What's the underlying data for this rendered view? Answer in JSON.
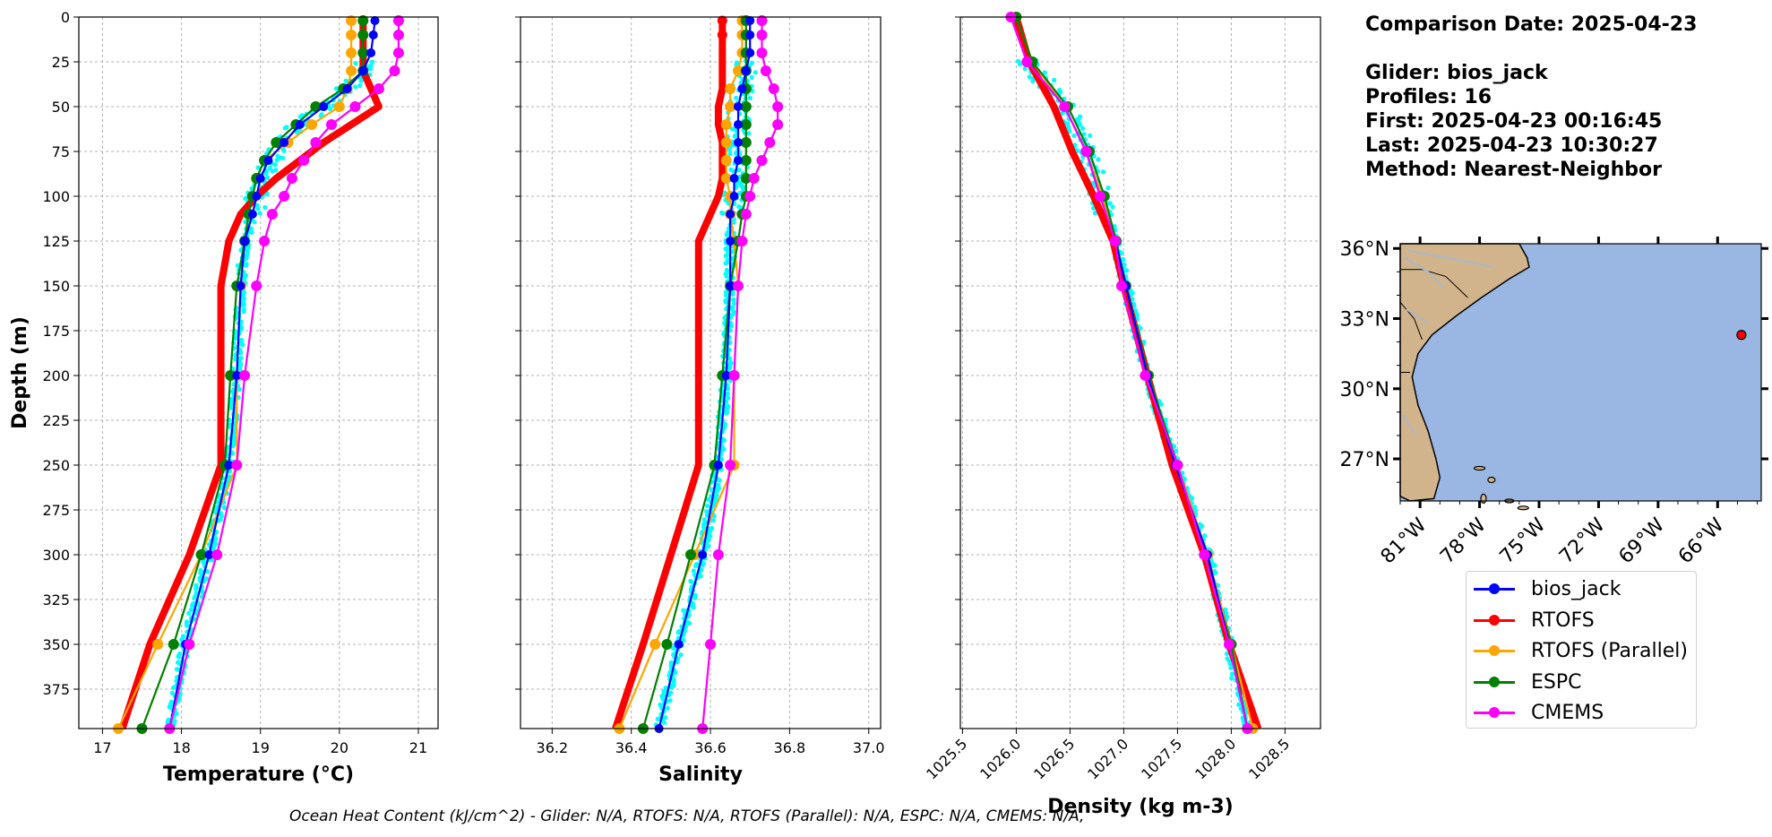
{
  "info": {
    "comparison_date": "Comparison Date: 2025-04-23",
    "glider": "Glider: bios_jack",
    "profiles": "Profiles: 16",
    "first": "First: 2025-04-23 00:16:45",
    "last": "Last: 2025-04-23 10:30:27",
    "method": "Method: Nearest-Neighbor"
  },
  "footer": "Ocean Heat Content (kJ/cm^2) - Glider: N/A,  RTOFS: N/A,  RTOFS (Parallel): N/A,  ESPC: N/A,  CMEMS: N/A,",
  "colors": {
    "bios_jack": "#0000ff",
    "RTOFS": "#ff0000",
    "RTOFS (Parallel)": "#ffa500",
    "ESPC": "#008000",
    "CMEMS": "#ff00ff",
    "glider_profiles": "#00ffff",
    "land": "#d2b48c",
    "ocean": "#9ab7e3",
    "grid": "#b0b0b0"
  },
  "legend": [
    "bios_jack",
    "RTOFS",
    "RTOFS (Parallel)",
    "ESPC",
    "CMEMS"
  ],
  "chart_data": [
    {
      "type": "line",
      "panel": "temperature",
      "xlabel": "Temperature (°C)",
      "ylabel": "Depth (m)",
      "xlim": [
        16.7,
        21.25
      ],
      "ylim": [
        397,
        0
      ],
      "xticks": [
        17,
        18,
        19,
        20,
        21
      ],
      "yticks": [
        0,
        25,
        50,
        75,
        100,
        125,
        150,
        175,
        200,
        225,
        250,
        275,
        300,
        325,
        350,
        375
      ],
      "depth": [
        2,
        10,
        20,
        30,
        40,
        50,
        60,
        70,
        80,
        90,
        100,
        110,
        125,
        150,
        200,
        250,
        300,
        350,
        397
      ],
      "series": [
        {
          "name": "bios_jack",
          "values": [
            20.45,
            20.43,
            20.4,
            20.3,
            20.1,
            19.8,
            19.5,
            19.3,
            19.1,
            19.0,
            18.95,
            18.9,
            18.8,
            18.75,
            18.7,
            18.6,
            18.35,
            18.05,
            17.85
          ]
        },
        {
          "name": "RTOFS",
          "values": [
            20.3,
            20.3,
            20.3,
            20.3,
            20.4,
            20.5,
            20.15,
            19.8,
            19.5,
            19.2,
            18.95,
            18.75,
            18.6,
            18.5,
            18.5,
            18.5,
            18.1,
            17.6,
            17.25
          ]
        },
        {
          "name": "RTOFS (Parallel)",
          "values": [
            20.15,
            20.15,
            20.15,
            20.15,
            20.1,
            20.0,
            19.65,
            19.35,
            19.05,
            18.95,
            18.9,
            18.85,
            18.8,
            18.75,
            18.7,
            18.7,
            18.25,
            17.7,
            17.2
          ]
        },
        {
          "name": "ESPC",
          "values": [
            20.3,
            20.3,
            20.3,
            20.3,
            20.05,
            19.7,
            19.45,
            19.2,
            19.05,
            18.95,
            18.9,
            18.85,
            18.8,
            18.7,
            18.62,
            18.55,
            18.25,
            17.9,
            17.5
          ]
        },
        {
          "name": "CMEMS",
          "values": [
            20.75,
            20.75,
            20.75,
            20.7,
            20.5,
            20.2,
            19.9,
            19.7,
            19.55,
            19.4,
            19.3,
            19.15,
            19.05,
            18.95,
            18.8,
            18.7,
            18.45,
            18.1,
            17.85
          ]
        }
      ]
    },
    {
      "type": "line",
      "panel": "salinity",
      "xlabel": "Salinity",
      "xlim": [
        36.12,
        37.03
      ],
      "xticks": [
        36.2,
        36.4,
        36.6,
        36.8,
        37.0
      ],
      "yticks": [
        0,
        25,
        50,
        75,
        100,
        125,
        150,
        175,
        200,
        225,
        250,
        275,
        300,
        325,
        350,
        375
      ],
      "depth": [
        2,
        10,
        20,
        30,
        40,
        50,
        60,
        70,
        80,
        90,
        100,
        110,
        125,
        150,
        200,
        250,
        300,
        350,
        397
      ],
      "series": [
        {
          "name": "bios_jack",
          "values": [
            36.7,
            36.7,
            36.7,
            36.69,
            36.68,
            36.67,
            36.67,
            36.67,
            36.67,
            36.66,
            36.66,
            36.65,
            36.65,
            36.65,
            36.64,
            36.62,
            36.58,
            36.52,
            36.47
          ]
        },
        {
          "name": "RTOFS",
          "values": [
            36.63,
            36.63,
            36.63,
            36.63,
            36.63,
            36.62,
            36.62,
            36.63,
            36.63,
            36.63,
            36.62,
            36.6,
            36.57,
            36.57,
            36.57,
            36.57,
            36.5,
            36.43,
            36.36
          ]
        },
        {
          "name": "RTOFS (Parallel)",
          "values": [
            36.68,
            36.68,
            36.68,
            36.67,
            36.65,
            36.65,
            36.64,
            36.64,
            36.64,
            36.64,
            36.65,
            36.65,
            36.66,
            36.67,
            36.66,
            36.66,
            36.56,
            36.46,
            36.37
          ]
        },
        {
          "name": "ESPC",
          "values": [
            36.69,
            36.69,
            36.69,
            36.69,
            36.69,
            36.69,
            36.69,
            36.69,
            36.69,
            36.69,
            36.69,
            36.68,
            36.67,
            36.65,
            36.63,
            36.61,
            36.55,
            36.49,
            36.43
          ]
        },
        {
          "name": "CMEMS",
          "values": [
            36.73,
            36.73,
            36.73,
            36.74,
            36.76,
            36.77,
            36.77,
            36.75,
            36.73,
            36.71,
            36.7,
            36.69,
            36.68,
            36.67,
            36.66,
            36.65,
            36.62,
            36.6,
            36.58
          ]
        }
      ]
    },
    {
      "type": "line",
      "panel": "density",
      "xlabel": "Density (kg m-3)",
      "xlim": [
        1025.48,
        1028.83
      ],
      "xticks": [
        1025.5,
        1026.0,
        1026.5,
        1027.0,
        1027.5,
        1028.0,
        1028.5
      ],
      "yticks": [
        0,
        25,
        50,
        75,
        100,
        125,
        150,
        175,
        200,
        225,
        250,
        275,
        300,
        325,
        350,
        375
      ],
      "depth": [
        0,
        25,
        50,
        75,
        100,
        125,
        150,
        200,
        250,
        300,
        350,
        397
      ],
      "series": [
        {
          "name": "bios_jack",
          "values": [
            1025.95,
            1026.1,
            1026.45,
            1026.65,
            1026.78,
            1026.92,
            1027.02,
            1027.22,
            1027.48,
            1027.78,
            1027.98,
            1028.15
          ]
        },
        {
          "name": "RTOFS",
          "values": [
            1026.0,
            1026.12,
            1026.35,
            1026.52,
            1026.72,
            1026.9,
            1027.0,
            1027.22,
            1027.45,
            1027.75,
            1027.98,
            1028.25
          ]
        },
        {
          "name": "RTOFS (Parallel)",
          "values": [
            1026.0,
            1026.15,
            1026.45,
            1026.65,
            1026.8,
            1026.92,
            1027.02,
            1027.23,
            1027.5,
            1027.78,
            1028.0,
            1028.2
          ]
        },
        {
          "name": "ESPC",
          "values": [
            1026.0,
            1026.15,
            1026.48,
            1026.68,
            1026.82,
            1026.93,
            1027.02,
            1027.23,
            1027.5,
            1027.75,
            1028.0,
            1028.15
          ]
        },
        {
          "name": "CMEMS",
          "values": [
            1025.95,
            1026.1,
            1026.45,
            1026.65,
            1026.78,
            1026.92,
            1026.98,
            1027.2,
            1027.5,
            1027.75,
            1027.98,
            1028.15
          ]
        }
      ]
    }
  ],
  "map": {
    "lat_ticks": [
      "36°N",
      "33°N",
      "30°N",
      "27°N"
    ],
    "lon_ticks": [
      "81°W",
      "78°W",
      "75°W",
      "72°W",
      "69°W",
      "66°W"
    ],
    "glider_position": {
      "lon": -64.8,
      "lat": 32.3
    }
  }
}
